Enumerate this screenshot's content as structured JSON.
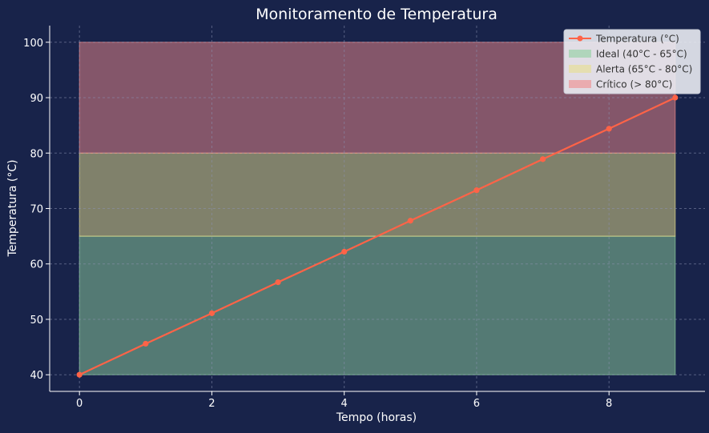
{
  "colors": {
    "background": "#18234a",
    "text": "#ffffff",
    "line": "#ff6347",
    "grid": "#8a91b0",
    "ideal": "#8fd19e",
    "alert": "#e8e08c",
    "critical": "#f08a8a",
    "legend_bg": "#eef0f6"
  },
  "chart_data": {
    "type": "line",
    "title": "Monitoramento de Temperatura",
    "xlabel": "Tempo (horas)",
    "ylabel": "Temperatura (°C)",
    "xlim": [
      -0.45,
      9.45
    ],
    "ylim": [
      37,
      103
    ],
    "xticks": [
      0,
      2,
      4,
      6,
      8
    ],
    "yticks": [
      40,
      50,
      60,
      70,
      80,
      90,
      100
    ],
    "grid": true,
    "legend_position": "top-right",
    "series": [
      {
        "name": "Temperatura (°C)",
        "x": [
          0,
          1,
          2,
          3,
          4,
          5,
          6,
          7,
          8,
          9
        ],
        "y": [
          40.0,
          45.6,
          51.1,
          56.7,
          62.2,
          67.8,
          73.3,
          78.9,
          84.4,
          90.0
        ]
      }
    ],
    "bands": [
      {
        "name": "Ideal (40°C - 65°C)",
        "y0": 40,
        "y1": 65,
        "color": "#8fd19e"
      },
      {
        "name": "Alerta (65°C - 80°C)",
        "y0": 65,
        "y1": 80,
        "color": "#e8e08c"
      },
      {
        "name": "Crítico (> 80°C)",
        "y0": 80,
        "y1": 100,
        "color": "#f08a8a"
      }
    ],
    "band_x": [
      0,
      9
    ]
  }
}
